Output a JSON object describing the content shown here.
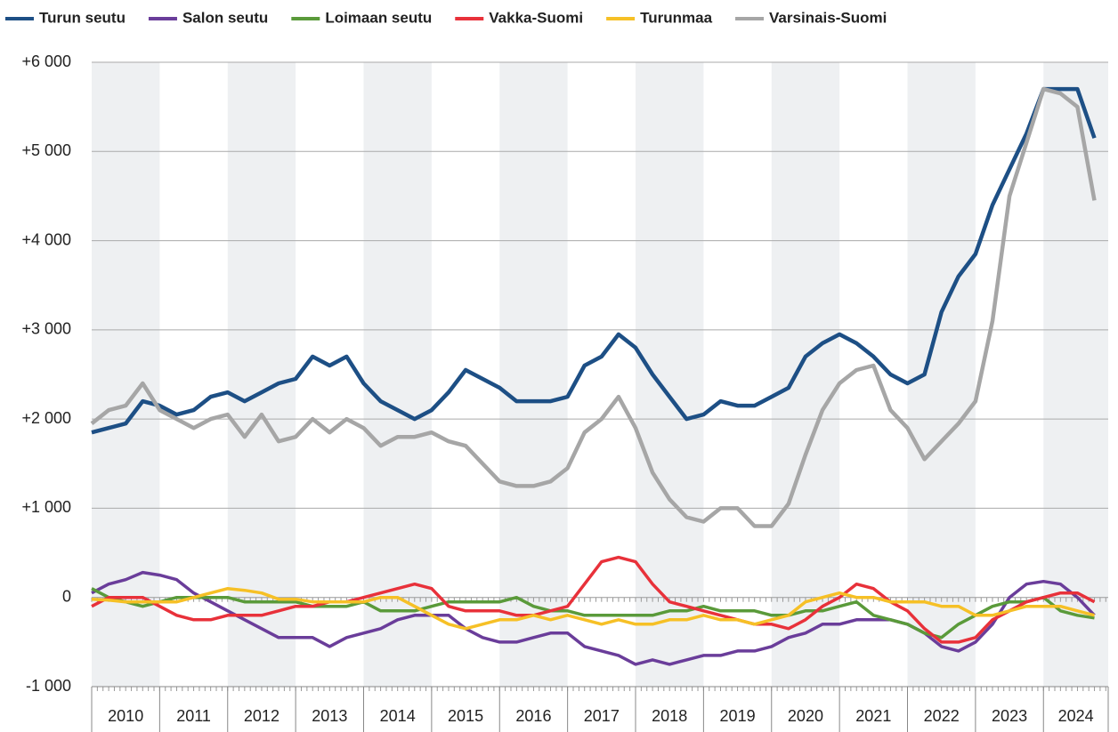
{
  "chart_data": {
    "type": "line",
    "x": [
      2010,
      2010.25,
      2010.5,
      2010.75,
      2011,
      2011.25,
      2011.5,
      2011.75,
      2012,
      2012.25,
      2012.5,
      2012.75,
      2013,
      2013.25,
      2013.5,
      2013.75,
      2014,
      2014.25,
      2014.5,
      2014.75,
      2015,
      2015.25,
      2015.5,
      2015.75,
      2016,
      2016.25,
      2016.5,
      2016.75,
      2017,
      2017.25,
      2017.5,
      2017.75,
      2018,
      2018.25,
      2018.5,
      2018.75,
      2019,
      2019.25,
      2019.5,
      2019.75,
      2020,
      2020.25,
      2020.5,
      2020.75,
      2021,
      2021.25,
      2021.5,
      2021.75,
      2022,
      2022.25,
      2022.5,
      2022.75,
      2023,
      2023.25,
      2023.5,
      2023.75,
      2024,
      2024.25,
      2024.5,
      2024.75
    ],
    "xlim": [
      2010,
      2024.9
    ],
    "xticks": [
      2010,
      2011,
      2012,
      2013,
      2014,
      2015,
      2016,
      2017,
      2018,
      2019,
      2020,
      2021,
      2022,
      2023,
      2024
    ],
    "ylim": [
      -1000,
      6000
    ],
    "yticks": [
      {
        "value": -1000,
        "label": "-1 000"
      },
      0,
      {
        "value": 1000,
        "label": "+1 000"
      },
      {
        "value": 2000,
        "label": "+2 000"
      },
      {
        "value": 3000,
        "label": "+3 000"
      },
      {
        "value": 4000,
        "label": "+4 000"
      },
      {
        "value": 5000,
        "label": "+5 000"
      },
      {
        "value": 6000,
        "label": "+6 000"
      }
    ],
    "grid": true,
    "legend": "top",
    "series": [
      {
        "name": "Turun seutu",
        "color": "#1d4f85",
        "values": [
          1850,
          1900,
          1950,
          2200,
          2150,
          2050,
          2100,
          2250,
          2300,
          2200,
          2300,
          2400,
          2450,
          2700,
          2600,
          2700,
          2400,
          2200,
          2100,
          2000,
          2100,
          2300,
          2550,
          2450,
          2350,
          2200,
          2200,
          2200,
          2250,
          2600,
          2700,
          2950,
          2800,
          2500,
          2250,
          2000,
          2050,
          2200,
          2150,
          2150,
          2250,
          2350,
          2700,
          2850,
          2950,
          2850,
          2700,
          2500,
          2400,
          2500,
          3200,
          3600,
          3850,
          4400,
          4800,
          5200,
          5700,
          5700,
          5700,
          5150
        ]
      },
      {
        "name": "Salon seutu",
        "color": "#6a3d9a",
        "values": [
          50,
          150,
          200,
          280,
          250,
          200,
          50,
          -50,
          -150,
          -250,
          -350,
          -450,
          -450,
          -450,
          -550,
          -450,
          -400,
          -350,
          -250,
          -200,
          -200,
          -200,
          -350,
          -450,
          -500,
          -500,
          -450,
          -400,
          -400,
          -550,
          -600,
          -650,
          -750,
          -700,
          -750,
          -700,
          -650,
          -650,
          -600,
          -600,
          -550,
          -450,
          -400,
          -300,
          -300,
          -250,
          -250,
          -250,
          -300,
          -400,
          -550,
          -600,
          -500,
          -300,
          0,
          150,
          180,
          150,
          0,
          -200
        ]
      },
      {
        "name": "Loimaan seutu",
        "color": "#5a9a3a",
        "values": [
          100,
          0,
          -50,
          -100,
          -50,
          0,
          0,
          0,
          0,
          -50,
          -50,
          -50,
          -50,
          -100,
          -100,
          -100,
          -50,
          -150,
          -150,
          -150,
          -100,
          -50,
          -50,
          -50,
          -50,
          0,
          -100,
          -150,
          -150,
          -200,
          -200,
          -200,
          -200,
          -200,
          -150,
          -150,
          -100,
          -150,
          -150,
          -150,
          -200,
          -200,
          -150,
          -150,
          -100,
          -50,
          -200,
          -250,
          -300,
          -400,
          -450,
          -300,
          -200,
          -100,
          -50,
          -50,
          0,
          -150,
          -200,
          -230
        ]
      },
      {
        "name": "Vakka-Suomi",
        "color": "#e8313a",
        "values": [
          -100,
          0,
          0,
          0,
          -100,
          -200,
          -250,
          -250,
          -200,
          -200,
          -200,
          -150,
          -100,
          -100,
          -50,
          -50,
          0,
          50,
          100,
          150,
          100,
          -100,
          -150,
          -150,
          -150,
          -200,
          -200,
          -150,
          -100,
          150,
          400,
          450,
          400,
          150,
          -50,
          -100,
          -150,
          -200,
          -250,
          -300,
          -300,
          -350,
          -250,
          -100,
          0,
          150,
          100,
          -50,
          -150,
          -350,
          -500,
          -500,
          -450,
          -250,
          -150,
          -50,
          0,
          50,
          50,
          -50
        ]
      },
      {
        "name": "Turunmaa",
        "color": "#f6c026",
        "values": [
          -20,
          -30,
          -50,
          -50,
          -50,
          -50,
          0,
          50,
          100,
          80,
          50,
          -20,
          -20,
          -50,
          -50,
          -50,
          -50,
          0,
          0,
          -100,
          -200,
          -300,
          -350,
          -300,
          -250,
          -250,
          -200,
          -250,
          -200,
          -250,
          -300,
          -250,
          -300,
          -300,
          -250,
          -250,
          -200,
          -250,
          -250,
          -300,
          -250,
          -200,
          -50,
          0,
          50,
          0,
          0,
          -50,
          -50,
          -50,
          -100,
          -100,
          -200,
          -200,
          -150,
          -100,
          -100,
          -100,
          -150,
          -200
        ]
      },
      {
        "name": "Varsinais-Suomi",
        "color": "#a6a6a6",
        "values": [
          1950,
          2100,
          2150,
          2400,
          2100,
          2000,
          1900,
          2000,
          2050,
          1800,
          2050,
          1750,
          1800,
          2000,
          1850,
          2000,
          1900,
          1700,
          1800,
          1800,
          1850,
          1750,
          1700,
          1500,
          1300,
          1250,
          1250,
          1300,
          1450,
          1850,
          2000,
          2250,
          1900,
          1400,
          1100,
          900,
          850,
          1000,
          1000,
          800,
          800,
          1050,
          1600,
          2100,
          2400,
          2550,
          2600,
          2100,
          1900,
          1550,
          1750,
          1950,
          2200,
          3100,
          4500,
          5100,
          5700,
          5650,
          5500,
          4450
        ]
      }
    ]
  }
}
